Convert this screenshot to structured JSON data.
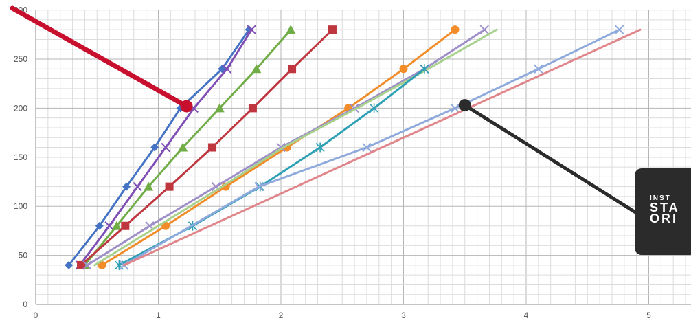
{
  "chart_data": {
    "type": "scatter",
    "title": "",
    "xlabel": "",
    "ylabel": "",
    "xlim": [
      0,
      5.5
    ],
    "ylim": [
      0,
      300
    ],
    "x_ticks": [
      0,
      1,
      2,
      3,
      4,
      5
    ],
    "y_ticks": [
      0,
      50,
      100,
      150,
      200,
      250,
      300
    ],
    "grid": true,
    "series": [
      {
        "color": "#4472c4",
        "marker": "diamond",
        "points": [
          [
            0.27,
            40
          ],
          [
            0.52,
            80
          ],
          [
            0.74,
            120
          ],
          [
            0.97,
            160
          ],
          [
            1.18,
            200
          ],
          [
            1.52,
            240
          ],
          [
            1.74,
            280
          ]
        ]
      },
      {
        "color": "#7f4fb5",
        "marker": "x",
        "points": [
          [
            0.36,
            40
          ],
          [
            0.6,
            80
          ],
          [
            0.83,
            120
          ],
          [
            1.06,
            160
          ],
          [
            1.29,
            200
          ],
          [
            1.56,
            240
          ],
          [
            1.76,
            280
          ]
        ]
      },
      {
        "color": "#70ad47",
        "marker": "triangle",
        "points": [
          [
            0.4,
            40
          ],
          [
            0.66,
            80
          ],
          [
            0.92,
            120
          ],
          [
            1.2,
            160
          ],
          [
            1.5,
            200
          ],
          [
            1.8,
            240
          ],
          [
            2.08,
            280
          ]
        ]
      },
      {
        "color": "#c0363f",
        "marker": "square",
        "points": [
          [
            0.37,
            40
          ],
          [
            0.73,
            80
          ],
          [
            1.09,
            120
          ],
          [
            1.44,
            160
          ],
          [
            1.77,
            200
          ],
          [
            2.09,
            240
          ],
          [
            2.42,
            280
          ]
        ]
      },
      {
        "color": "#f28c28",
        "marker": "circle",
        "points": [
          [
            0.54,
            40
          ],
          [
            1.06,
            80
          ],
          [
            1.55,
            120
          ],
          [
            2.05,
            160
          ],
          [
            2.55,
            200
          ],
          [
            3.0,
            240
          ],
          [
            3.42,
            280
          ]
        ]
      },
      {
        "color": "#9e8fc9",
        "marker": "x",
        "points": [
          [
            0.42,
            40
          ],
          [
            0.93,
            80
          ],
          [
            1.47,
            120
          ],
          [
            2.0,
            160
          ],
          [
            2.6,
            200
          ],
          [
            3.17,
            240
          ],
          [
            3.66,
            280
          ]
        ]
      },
      {
        "color": "#a9d18e",
        "marker": "none",
        "points": [
          [
            0.48,
            40
          ],
          [
            1.0,
            80
          ],
          [
            1.52,
            120
          ],
          [
            2.02,
            160
          ],
          [
            2.62,
            200
          ],
          [
            3.2,
            240
          ],
          [
            3.76,
            280
          ]
        ]
      },
      {
        "color": "#2ea0b5",
        "marker": "star",
        "points": [
          [
            0.68,
            40
          ],
          [
            1.28,
            80
          ],
          [
            1.83,
            120
          ],
          [
            2.32,
            160
          ],
          [
            2.76,
            200
          ],
          [
            3.17,
            240
          ]
        ]
      },
      {
        "color": "#8ea9db",
        "marker": "x",
        "points": [
          [
            0.72,
            40
          ],
          [
            1.82,
            120
          ],
          [
            2.7,
            160
          ],
          [
            3.42,
            200
          ],
          [
            4.1,
            240
          ],
          [
            4.76,
            280
          ]
        ]
      },
      {
        "color": "#e0858a",
        "marker": "none",
        "points": [
          [
            0.72,
            40
          ],
          [
            4.93,
            280
          ]
        ]
      }
    ],
    "annotations": [
      {
        "color": "#c8102e",
        "arrow_to": [
          1.23,
          202
        ],
        "from_edge": "top-left"
      },
      {
        "color": "#2b2b2b",
        "arrow_to": [
          3.5,
          203
        ],
        "to_callout": true
      }
    ]
  },
  "callout": {
    "line1": "INST",
    "line2": "STA",
    "line3": "ORI"
  }
}
